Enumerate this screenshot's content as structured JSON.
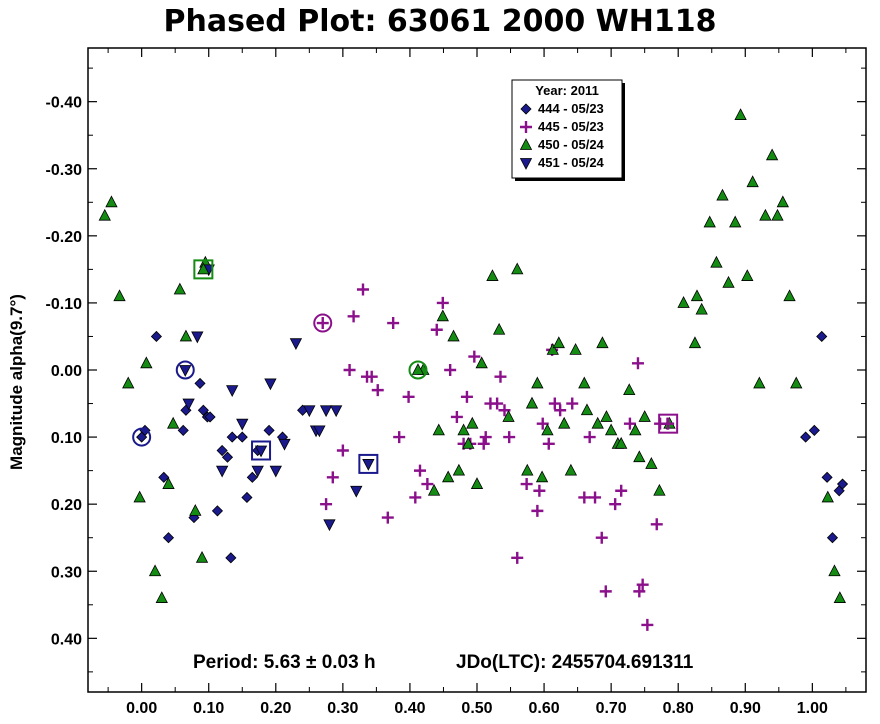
{
  "chart_data": {
    "type": "scatter",
    "title": "Phased Plot: 63061 2000 WH118",
    "xlabel": "",
    "ylabel": "Magnitude alpha(9.7°)",
    "xlim": [
      -0.08,
      1.08
    ],
    "ylim": [
      -0.48,
      0.48
    ],
    "y_inverted": true,
    "x_ticks": [
      "0.00",
      "0.10",
      "0.20",
      "0.30",
      "0.40",
      "0.50",
      "0.60",
      "0.70",
      "0.80",
      "0.90",
      "1.00"
    ],
    "y_ticks": [
      "-0.40",
      "-0.30",
      "-0.20",
      "-0.10",
      "0.00",
      "0.10",
      "0.20",
      "0.30",
      "0.40"
    ],
    "grid": false,
    "legend": {
      "placement": "top-right",
      "title": "Year: 2011",
      "entries": [
        "444 - 05/23",
        "445 - 05/23",
        "450 - 05/24",
        "451 - 05/24"
      ]
    },
    "annotations": {
      "period": "Period: 5.63 ± 0.03 h",
      "jdo": "JDo(LTC): 2455704.691311"
    },
    "series": [
      {
        "name": "444 - 05/23",
        "marker": "diamond",
        "color": "#1a1a8c",
        "x": [
          0.005,
          0.022,
          0.033,
          0.04,
          0.062,
          0.066,
          0.078,
          0.087,
          0.092,
          0.098,
          0.102,
          0.113,
          0.12,
          0.128,
          0.133,
          0.135,
          0.15,
          0.157,
          0.165,
          0.173,
          0.19,
          0.21,
          0.24,
          0.99,
          1.003,
          1.014,
          1.022,
          1.03,
          1.04,
          1.045
        ],
        "y": [
          0.09,
          -0.05,
          0.16,
          0.25,
          0.09,
          0.06,
          0.22,
          0.02,
          0.06,
          0.07,
          0.07,
          0.21,
          0.12,
          0.13,
          0.28,
          0.1,
          0.1,
          0.19,
          0.16,
          0.12,
          0.09,
          0.1,
          0.06,
          0.1,
          0.09,
          -0.05,
          0.16,
          0.25,
          0.18,
          0.17
        ]
      },
      {
        "name": "445 - 05/23",
        "marker": "plus",
        "color": "#8b108b",
        "x": [
          0.275,
          0.285,
          0.3,
          0.31,
          0.316,
          0.33,
          0.336,
          0.343,
          0.352,
          0.367,
          0.375,
          0.384,
          0.398,
          0.408,
          0.415,
          0.426,
          0.44,
          0.449,
          0.46,
          0.47,
          0.48,
          0.485,
          0.49,
          0.496,
          0.51,
          0.513,
          0.52,
          0.53,
          0.535,
          0.541,
          0.548,
          0.56,
          0.574,
          0.59,
          0.593,
          0.598,
          0.607,
          0.612,
          0.616,
          0.624,
          0.642,
          0.66,
          0.668,
          0.676,
          0.686,
          0.692,
          0.706,
          0.715,
          0.728,
          0.74,
          0.742,
          0.747,
          0.754,
          0.768,
          0.773,
          0.784
        ],
        "y": [
          0.2,
          0.16,
          0.12,
          0.0,
          -0.08,
          -0.12,
          0.01,
          0.01,
          0.03,
          0.22,
          -0.07,
          0.1,
          0.04,
          0.19,
          0.15,
          0.17,
          -0.06,
          -0.1,
          0.0,
          0.07,
          0.11,
          0.04,
          0.11,
          -0.02,
          0.11,
          0.1,
          0.05,
          0.05,
          0.01,
          0.06,
          0.1,
          0.28,
          0.17,
          0.21,
          0.18,
          0.08,
          0.11,
          -0.03,
          0.05,
          0.06,
          0.05,
          0.19,
          0.1,
          0.19,
          0.25,
          0.33,
          0.2,
          0.18,
          0.08,
          -0.01,
          0.33,
          0.32,
          0.38,
          0.23,
          0.08,
          0.08
        ]
      },
      {
        "name": "450 - 05/24",
        "marker": "triangle-up",
        "color": "#148c14",
        "x": [
          -0.055,
          -0.045,
          -0.033,
          -0.02,
          -0.003,
          0.007,
          0.02,
          0.03,
          0.04,
          0.047,
          0.057,
          0.066,
          0.08,
          0.09,
          0.095,
          0.42,
          0.436,
          0.443,
          0.449,
          0.457,
          0.465,
          0.473,
          0.48,
          0.487,
          0.493,
          0.5,
          0.507,
          0.523,
          0.533,
          0.547,
          0.56,
          0.575,
          0.582,
          0.59,
          0.597,
          0.605,
          0.613,
          0.622,
          0.63,
          0.64,
          0.647,
          0.66,
          0.664,
          0.68,
          0.687,
          0.693,
          0.7,
          0.71,
          0.715,
          0.727,
          0.736,
          0.742,
          0.75,
          0.76,
          0.772,
          0.787,
          0.808,
          0.825,
          0.828,
          0.835,
          0.847,
          0.857,
          0.866,
          0.875,
          0.885,
          0.893,
          0.903,
          0.911,
          0.921,
          0.93,
          0.94,
          0.948,
          0.956,
          0.966,
          0.976,
          1.023,
          1.033,
          1.041
        ],
        "y": [
          -0.23,
          -0.25,
          -0.11,
          0.02,
          0.19,
          -0.01,
          0.3,
          0.34,
          0.17,
          0.08,
          -0.12,
          -0.05,
          0.21,
          0.28,
          -0.16,
          0.0,
          0.18,
          0.09,
          -0.08,
          0.16,
          -0.05,
          0.15,
          0.09,
          0.11,
          0.08,
          0.17,
          -0.01,
          -0.14,
          -0.06,
          0.07,
          -0.15,
          0.15,
          0.05,
          0.02,
          0.16,
          0.09,
          -0.03,
          -0.04,
          0.08,
          0.15,
          -0.03,
          0.02,
          0.06,
          0.08,
          -0.04,
          0.07,
          0.09,
          0.11,
          0.11,
          0.03,
          0.09,
          0.13,
          0.07,
          0.14,
          0.18,
          0.08,
          -0.1,
          -0.04,
          -0.11,
          -0.09,
          -0.22,
          -0.16,
          -0.26,
          -0.13,
          -0.22,
          -0.38,
          -0.14,
          -0.28,
          0.02,
          -0.23,
          -0.32,
          -0.23,
          -0.25,
          -0.11,
          0.02,
          0.19,
          0.3,
          0.34
        ]
      },
      {
        "name": "451 - 05/24",
        "marker": "triangle-down",
        "color": "#1a1a8c",
        "x": [
          0.07,
          0.083,
          0.1,
          0.12,
          0.135,
          0.15,
          0.173,
          0.192,
          0.2,
          0.213,
          0.23,
          0.25,
          0.26,
          0.265,
          0.275,
          0.28,
          0.29,
          0.32
        ],
        "y": [
          0.05,
          -0.05,
          -0.15,
          0.15,
          0.03,
          0.08,
          0.15,
          0.02,
          0.15,
          0.11,
          -0.04,
          0.06,
          0.09,
          0.09,
          0.06,
          0.23,
          0.06,
          0.18
        ]
      }
    ],
    "highlighted_points": [
      {
        "series": "444 - 05/23",
        "x": 0.0,
        "y": 0.1,
        "shape": "circle"
      },
      {
        "series": "451 - 05/24",
        "x": 0.065,
        "y": 0.0,
        "shape": "circle"
      },
      {
        "series": "450 - 05/24",
        "x": 0.092,
        "y": -0.15,
        "shape": "square"
      },
      {
        "series": "451 - 05/24",
        "x": 0.178,
        "y": 0.12,
        "shape": "square"
      },
      {
        "series": "445 - 05/23",
        "x": 0.27,
        "y": -0.07,
        "shape": "circle"
      },
      {
        "series": "451 - 05/24",
        "x": 0.338,
        "y": 0.14,
        "shape": "square"
      },
      {
        "series": "450 - 05/24",
        "x": 0.412,
        "y": 0.0,
        "shape": "circle"
      },
      {
        "series": "445 - 05/23",
        "x": 0.785,
        "y": 0.08,
        "shape": "square"
      }
    ]
  }
}
